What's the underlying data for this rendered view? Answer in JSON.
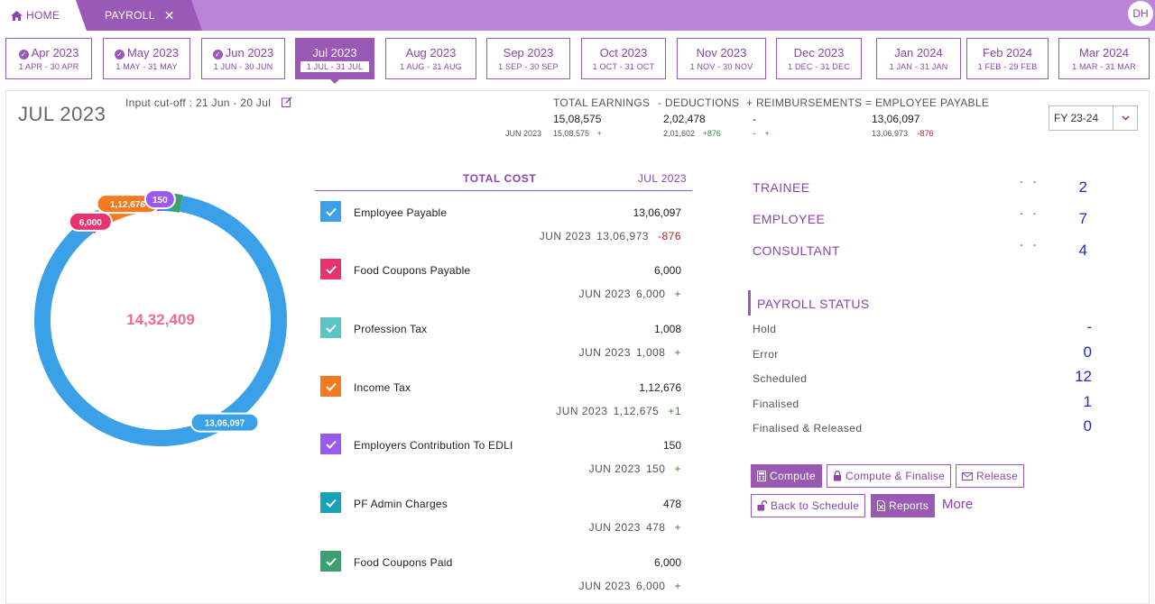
{
  "tabs": {
    "home": "HOME",
    "payroll": "PAYROLL",
    "close": "✕"
  },
  "user": {
    "initials": "DH"
  },
  "months": [
    {
      "name": "Apr 2023",
      "range": "1 APR - 30 APR",
      "done": true
    },
    {
      "name": "May 2023",
      "range": "1 MAY - 31 MAY",
      "done": true
    },
    {
      "name": "Jun 2023",
      "range": "1 JUN - 30 JUN",
      "done": true
    },
    {
      "name": "Jul 2023",
      "range": "1 JUL - 31 JUL",
      "done": false,
      "active": true
    },
    {
      "name": "Aug 2023",
      "range": "1 AUG - 31 AUG",
      "done": false
    },
    {
      "name": "Sep 2023",
      "range": "1 SEP - 30 SEP",
      "done": false
    },
    {
      "name": "Oct 2023",
      "range": "1 OCT - 31 OCT",
      "done": false
    },
    {
      "name": "Nov 2023",
      "range": "1 NOV - 30 NOV",
      "done": false
    },
    {
      "name": "Dec 2023",
      "range": "1 DEC - 31 DEC",
      "done": false
    },
    {
      "name": "Jan 2024",
      "range": "1 JAN - 31 JAN",
      "done": false
    },
    {
      "name": "Feb 2024",
      "range": "1 FEB - 29 FEB",
      "done": false
    },
    {
      "name": "Mar 2024",
      "range": "1 MAR - 31 MAR",
      "done": false
    }
  ],
  "period": {
    "title": "JUL 2023",
    "cutoff": "Input cut-off : 21 Jun - 20 Jul"
  },
  "summary": {
    "prev_label": "JUN 2023",
    "earnings": {
      "label": "TOTAL EARNINGS",
      "value": "15,08,575",
      "prev": "15,08,575",
      "diff": "+"
    },
    "deductions": {
      "label": "- DEDUCTIONS",
      "value": "2,02,478",
      "prev": "2,01,602",
      "diff": "+876"
    },
    "reimbursements": {
      "label": "+ REIMBURSEMENTS",
      "value": "-",
      "prev": "-",
      "diff": "+"
    },
    "payable": {
      "label": "= EMPLOYEE PAYABLE",
      "value": "13,06,097",
      "prev": "13,06,973",
      "diff": "-876"
    }
  },
  "fy": {
    "value": "FY 23-24"
  },
  "donut": {
    "center_label": "14,32,409",
    "segments": [
      {
        "name": "Employee Payable",
        "value": 1306097,
        "label": "13,06,097",
        "color": "#3aa0e8"
      },
      {
        "name": "Food Coupons Payable",
        "value": 6000,
        "label": "6,000",
        "color": "#e8336f"
      },
      {
        "name": "Profession Tax",
        "value": 1008,
        "label": "",
        "color": "#5bc5c5"
      },
      {
        "name": "Income Tax",
        "value": 112676,
        "label": "1,12,676",
        "color": "#f47a20"
      },
      {
        "name": "Employers Contribution To EDLI",
        "value": 150,
        "label": "150",
        "color": "#9b59f0"
      },
      {
        "name": "PF Admin Charges",
        "value": 478,
        "label": "",
        "color": "#17a2b8"
      },
      {
        "name": "Food Coupons Paid",
        "value": 6000,
        "label": "",
        "color": "#3aa070"
      }
    ]
  },
  "cost": {
    "header_total": "TOTAL COST",
    "header_month": "JUL 2023",
    "items": [
      {
        "name": "Employee Payable",
        "amount": "13,06,097",
        "prev_month": "JUN 2023",
        "prev": "13,06,973",
        "diff": "-876",
        "color": "#3aa0e8"
      },
      {
        "name": "Food Coupons Payable",
        "amount": "6,000",
        "prev_month": "JUN 2023",
        "prev": "6,000",
        "diff": "+",
        "color": "#e8336f"
      },
      {
        "name": "Profession Tax",
        "amount": "1,008",
        "prev_month": "JUN 2023",
        "prev": "1,008",
        "diff": "+",
        "color": "#5bc5c5"
      },
      {
        "name": "Income Tax",
        "amount": "1,12,676",
        "prev_month": "JUN 2023",
        "prev": "1,12,675",
        "diff": "+1",
        "color": "#f47a20"
      },
      {
        "name": "Employers Contribution To EDLI",
        "amount": "150",
        "prev_month": "JUN 2023",
        "prev": "150",
        "diff": "+",
        "color": "#9b59f0"
      },
      {
        "name": "PF Admin Charges",
        "amount": "478",
        "prev_month": "JUN 2023",
        "prev": "478",
        "diff": "+",
        "color": "#17a2b8"
      },
      {
        "name": "Food Coupons Paid",
        "amount": "6,000",
        "prev_month": "JUN 2023",
        "prev": "6,000",
        "diff": "+",
        "color": "#3aa070"
      }
    ]
  },
  "headcount": [
    {
      "label": "TRAINEE",
      "dash": "- -",
      "value": "2"
    },
    {
      "label": "EMPLOYEE",
      "dash": "- -",
      "value": "7"
    },
    {
      "label": "CONSULTANT",
      "dash": "- -",
      "value": "4"
    }
  ],
  "payroll_status": {
    "title": "PAYROLL STATUS",
    "rows": [
      {
        "label": "Hold",
        "value": "-"
      },
      {
        "label": "Error",
        "value": "0"
      },
      {
        "label": "Scheduled",
        "value": "12"
      },
      {
        "label": "Finalised",
        "value": "1"
      },
      {
        "label": "Finalised & Released",
        "value": "0"
      }
    ]
  },
  "actions": {
    "compute": "Compute",
    "compute_finalise": "Compute & Finalise",
    "release": "Release",
    "back_to_schedule": "Back to Schedule",
    "reports": "Reports",
    "more": "More"
  }
}
